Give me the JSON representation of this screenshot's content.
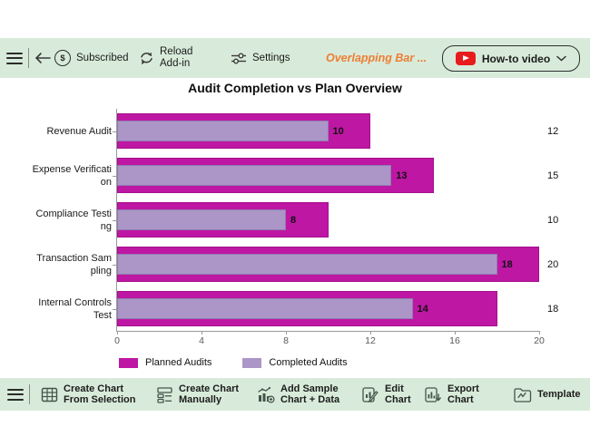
{
  "toolbar_top": {
    "background": "#D8EBDA",
    "subscribed_label": "Subscribed",
    "reload_lines": [
      "Reload",
      "Add-in"
    ],
    "settings_label": "Settings",
    "chart_type_label": "Overlapping Bar ...",
    "chart_type_color": "#EF7D33",
    "howto_label": "How-to video",
    "youtube_red": "#E81C1C"
  },
  "chart_data": {
    "type": "bar",
    "orientation": "horizontal",
    "title": "Audit Completion vs Plan Overview",
    "categories": [
      "Revenue Audit",
      "Expense Verification",
      "Compliance Testing",
      "Transaction Sampling",
      "Internal Controls Test"
    ],
    "category_label_lines": [
      [
        "Revenue Audit"
      ],
      [
        "Expense Verificati",
        "on"
      ],
      [
        "Compliance Testi",
        "ng"
      ],
      [
        "Transaction Sam",
        "pling"
      ],
      [
        "Internal Controls",
        "Test"
      ]
    ],
    "series": [
      {
        "name": "Planned Audits",
        "values": [
          12,
          15,
          10,
          20,
          18
        ],
        "color": "#BE17A4"
      },
      {
        "name": "Completed Audits",
        "values": [
          10,
          13,
          8,
          18,
          14
        ],
        "color": "#AB96C7"
      }
    ],
    "data_labels_inner_series": "Completed Audits",
    "data_labels_right_series": "Planned Audits",
    "xlim": [
      0,
      20
    ],
    "xticks": [
      0,
      4,
      8,
      12,
      16,
      20
    ],
    "grid": false,
    "legend_position": "bottom"
  },
  "toolbar_bottom": {
    "items": [
      {
        "icon": "table-grid-icon",
        "label_lines": [
          "Create Chart",
          "From Selection"
        ]
      },
      {
        "icon": "form-layout-icon",
        "label_lines": [
          "Create Chart",
          "Manually"
        ]
      },
      {
        "icon": "chart-plus-icon",
        "label_lines": [
          "Add Sample",
          "Chart + Data"
        ]
      },
      {
        "icon": "edit-chart-icon",
        "label_lines": [
          "Edit",
          "Chart"
        ]
      },
      {
        "icon": "export-chart-icon",
        "label_lines": [
          "Export",
          "Chart"
        ]
      },
      {
        "icon": "template-folder-icon",
        "label_lines": [
          "Template"
        ]
      }
    ]
  }
}
